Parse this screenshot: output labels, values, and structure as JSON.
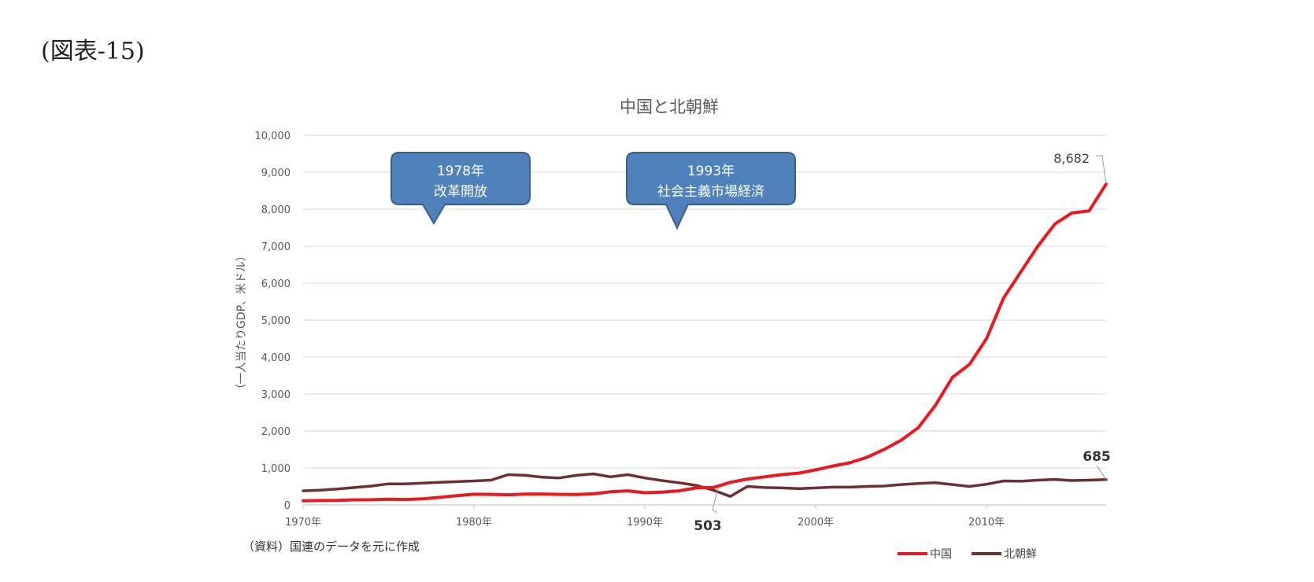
{
  "figure_label": "(図表-15)",
  "chart_data": {
    "type": "line",
    "title": "中国と北朝鮮",
    "ylabel": "（一人当たりGDP、米ドル）",
    "xlabel": "",
    "x_ticks": [
      "1970年",
      "1980年",
      "1990年",
      "2000年",
      "2010年"
    ],
    "y_ticks": [
      "0",
      "1,000",
      "2,000",
      "3,000",
      "4,000",
      "5,000",
      "6,000",
      "7,000",
      "8,000",
      "9,000",
      "10,000"
    ],
    "ylim": [
      0,
      10000
    ],
    "xlim": [
      1970,
      2017
    ],
    "grid": true,
    "legend_position": "bottom-right",
    "x": [
      1970,
      1971,
      1972,
      1973,
      1974,
      1975,
      1976,
      1977,
      1978,
      1979,
      1980,
      1981,
      1982,
      1983,
      1984,
      1985,
      1986,
      1987,
      1988,
      1989,
      1990,
      1991,
      1992,
      1993,
      1994,
      1995,
      1996,
      1997,
      1998,
      1999,
      2000,
      2001,
      2002,
      2003,
      2004,
      2005,
      2006,
      2007,
      2008,
      2009,
      2010,
      2011,
      2012,
      2013,
      2014,
      2015,
      2016,
      2017
    ],
    "series": [
      {
        "name": "中国",
        "color": "#e8191f",
        "values": [
          113,
          119,
          122,
          139,
          140,
          155,
          146,
          163,
          205,
          250,
          290,
          285,
          275,
          293,
          295,
          285,
          283,
          300,
          355,
          380,
          330,
          345,
          380,
          460,
          470,
          610,
          700,
          760,
          820,
          860,
          950,
          1050,
          1140,
          1290,
          1500,
          1750,
          2090,
          2690,
          3450,
          3800,
          4500,
          5600,
          6300,
          7000,
          7600,
          7900,
          7950,
          8682
        ]
      },
      {
        "name": "北朝鮮",
        "color": "#6e2f2f",
        "values": [
          380,
          400,
          430,
          470,
          510,
          570,
          570,
          590,
          610,
          630,
          650,
          670,
          820,
          800,
          750,
          730,
          800,
          840,
          760,
          820,
          730,
          660,
          600,
          530,
          400,
          230,
          500,
          470,
          460,
          440,
          460,
          480,
          480,
          500,
          510,
          550,
          580,
          600,
          550,
          500,
          560,
          650,
          640,
          670,
          690,
          660,
          670,
          685
        ]
      }
    ],
    "callouts": [
      {
        "line1": "1978年",
        "line2": "改革開放"
      },
      {
        "line1": "1993年",
        "line2": "社会主義市場経済"
      }
    ],
    "annotations": {
      "china_end": "8,682",
      "nk_end": "685",
      "crossover": "503"
    },
    "source_note": "（資料）国連のデータを元に作成"
  },
  "colors": {
    "callout_fill": "#4f81bd",
    "callout_border": "#3a5f8f",
    "grid": "#d9d9d9"
  }
}
